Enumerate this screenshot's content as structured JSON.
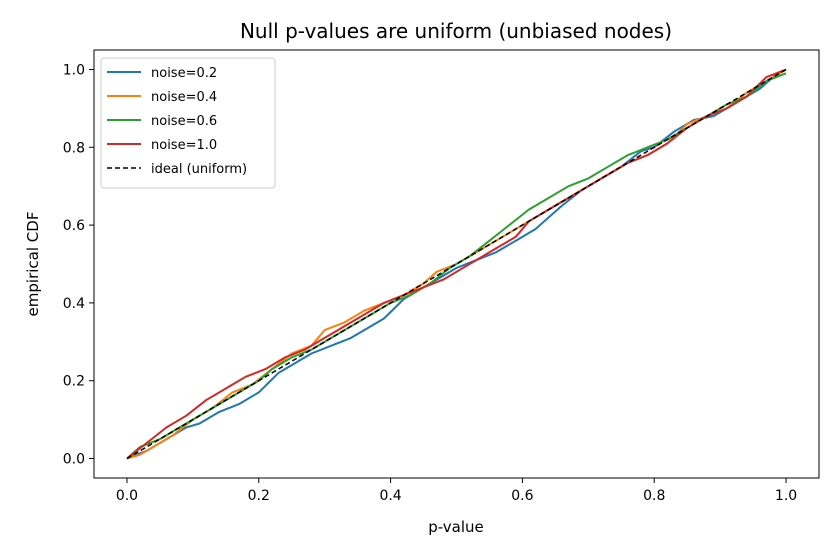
{
  "chart_data": {
    "type": "line",
    "title": "Null p-values are uniform (unbiased nodes)",
    "xlabel": "p-value",
    "ylabel": "empirical CDF",
    "xlim": [
      -0.05,
      1.05
    ],
    "ylim": [
      -0.05,
      1.05
    ],
    "xticks": [
      0.0,
      0.2,
      0.4,
      0.6,
      0.8,
      1.0
    ],
    "yticks": [
      0.0,
      0.2,
      0.4,
      0.6,
      0.8,
      1.0
    ],
    "xtick_labels": [
      "0.0",
      "0.2",
      "0.4",
      "0.6",
      "0.8",
      "1.0"
    ],
    "ytick_labels": [
      "0.0",
      "0.2",
      "0.4",
      "0.6",
      "0.8",
      "1.0"
    ],
    "grid": false,
    "legend_position": "top-left",
    "series": [
      {
        "name": "noise=0.2",
        "color": "#1f77b4",
        "points": [
          [
            0.0,
            0.0
          ],
          [
            0.03,
            0.02
          ],
          [
            0.06,
            0.05
          ],
          [
            0.09,
            0.08
          ],
          [
            0.11,
            0.09
          ],
          [
            0.14,
            0.12
          ],
          [
            0.17,
            0.14
          ],
          [
            0.2,
            0.17
          ],
          [
            0.23,
            0.22
          ],
          [
            0.26,
            0.25
          ],
          [
            0.28,
            0.27
          ],
          [
            0.31,
            0.29
          ],
          [
            0.34,
            0.31
          ],
          [
            0.37,
            0.34
          ],
          [
            0.39,
            0.36
          ],
          [
            0.42,
            0.41
          ],
          [
            0.45,
            0.44
          ],
          [
            0.48,
            0.47
          ],
          [
            0.5,
            0.49
          ],
          [
            0.53,
            0.51
          ],
          [
            0.56,
            0.53
          ],
          [
            0.59,
            0.56
          ],
          [
            0.62,
            0.59
          ],
          [
            0.64,
            0.62
          ],
          [
            0.66,
            0.65
          ],
          [
            0.69,
            0.69
          ],
          [
            0.72,
            0.72
          ],
          [
            0.75,
            0.75
          ],
          [
            0.78,
            0.79
          ],
          [
            0.8,
            0.8
          ],
          [
            0.83,
            0.84
          ],
          [
            0.86,
            0.87
          ],
          [
            0.89,
            0.88
          ],
          [
            0.92,
            0.91
          ],
          [
            0.94,
            0.93
          ],
          [
            0.96,
            0.95
          ],
          [
            0.98,
            0.98
          ],
          [
            1.0,
            1.0
          ]
        ]
      },
      {
        "name": "noise=0.4",
        "color": "#ff7f0e",
        "points": [
          [
            0.0,
            0.0
          ],
          [
            0.02,
            0.01
          ],
          [
            0.04,
            0.03
          ],
          [
            0.07,
            0.06
          ],
          [
            0.1,
            0.1
          ],
          [
            0.13,
            0.13
          ],
          [
            0.16,
            0.17
          ],
          [
            0.19,
            0.19
          ],
          [
            0.22,
            0.23
          ],
          [
            0.25,
            0.27
          ],
          [
            0.28,
            0.29
          ],
          [
            0.3,
            0.33
          ],
          [
            0.33,
            0.35
          ],
          [
            0.36,
            0.38
          ],
          [
            0.39,
            0.4
          ],
          [
            0.42,
            0.42
          ],
          [
            0.45,
            0.45
          ],
          [
            0.47,
            0.48
          ],
          [
            0.5,
            0.5
          ],
          [
            0.53,
            0.53
          ],
          [
            0.56,
            0.56
          ],
          [
            0.58,
            0.58
          ],
          [
            0.61,
            0.61
          ],
          [
            0.64,
            0.64
          ],
          [
            0.67,
            0.67
          ],
          [
            0.7,
            0.7
          ],
          [
            0.73,
            0.73
          ],
          [
            0.76,
            0.76
          ],
          [
            0.79,
            0.78
          ],
          [
            0.82,
            0.81
          ],
          [
            0.85,
            0.86
          ],
          [
            0.88,
            0.88
          ],
          [
            0.91,
            0.9
          ],
          [
            0.94,
            0.94
          ],
          [
            0.97,
            0.97
          ],
          [
            1.0,
            1.0
          ]
        ]
      },
      {
        "name": "noise=0.6",
        "color": "#2ca02c",
        "points": [
          [
            0.0,
            0.0
          ],
          [
            0.02,
            0.03
          ],
          [
            0.05,
            0.05
          ],
          [
            0.08,
            0.08
          ],
          [
            0.11,
            0.11
          ],
          [
            0.14,
            0.14
          ],
          [
            0.17,
            0.17
          ],
          [
            0.2,
            0.2
          ],
          [
            0.22,
            0.23
          ],
          [
            0.25,
            0.26
          ],
          [
            0.28,
            0.28
          ],
          [
            0.31,
            0.31
          ],
          [
            0.34,
            0.34
          ],
          [
            0.37,
            0.37
          ],
          [
            0.4,
            0.4
          ],
          [
            0.43,
            0.42
          ],
          [
            0.46,
            0.45
          ],
          [
            0.49,
            0.49
          ],
          [
            0.52,
            0.52
          ],
          [
            0.55,
            0.56
          ],
          [
            0.58,
            0.6
          ],
          [
            0.61,
            0.64
          ],
          [
            0.64,
            0.67
          ],
          [
            0.67,
            0.7
          ],
          [
            0.7,
            0.72
          ],
          [
            0.73,
            0.75
          ],
          [
            0.76,
            0.78
          ],
          [
            0.79,
            0.8
          ],
          [
            0.82,
            0.82
          ],
          [
            0.85,
            0.85
          ],
          [
            0.88,
            0.88
          ],
          [
            0.91,
            0.91
          ],
          [
            0.94,
            0.93
          ],
          [
            0.97,
            0.97
          ],
          [
            1.0,
            0.99
          ]
        ]
      },
      {
        "name": "noise=1.0",
        "color": "#d62728",
        "points": [
          [
            0.0,
            0.0
          ],
          [
            0.03,
            0.04
          ],
          [
            0.06,
            0.08
          ],
          [
            0.09,
            0.11
          ],
          [
            0.12,
            0.15
          ],
          [
            0.15,
            0.18
          ],
          [
            0.18,
            0.21
          ],
          [
            0.21,
            0.23
          ],
          [
            0.24,
            0.26
          ],
          [
            0.27,
            0.28
          ],
          [
            0.3,
            0.31
          ],
          [
            0.33,
            0.34
          ],
          [
            0.36,
            0.37
          ],
          [
            0.39,
            0.4
          ],
          [
            0.42,
            0.42
          ],
          [
            0.45,
            0.44
          ],
          [
            0.48,
            0.46
          ],
          [
            0.5,
            0.48
          ],
          [
            0.53,
            0.51
          ],
          [
            0.56,
            0.54
          ],
          [
            0.59,
            0.57
          ],
          [
            0.61,
            0.61
          ],
          [
            0.64,
            0.64
          ],
          [
            0.67,
            0.67
          ],
          [
            0.7,
            0.7
          ],
          [
            0.73,
            0.73
          ],
          [
            0.76,
            0.76
          ],
          [
            0.79,
            0.78
          ],
          [
            0.82,
            0.81
          ],
          [
            0.85,
            0.85
          ],
          [
            0.88,
            0.88
          ],
          [
            0.91,
            0.9
          ],
          [
            0.94,
            0.93
          ],
          [
            0.97,
            0.98
          ],
          [
            1.0,
            1.0
          ]
        ]
      },
      {
        "name": "ideal (uniform)",
        "color": "#000000",
        "dashed": true,
        "points": [
          [
            0.0,
            0.0
          ],
          [
            1.0,
            1.0
          ]
        ]
      }
    ]
  }
}
